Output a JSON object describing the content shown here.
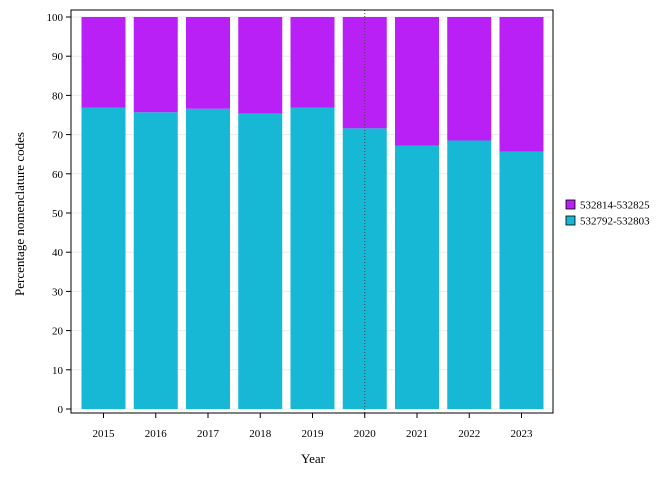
{
  "chart_data": {
    "type": "bar",
    "stacked": true,
    "categories": [
      "2015",
      "2016",
      "2017",
      "2018",
      "2019",
      "2020",
      "2021",
      "2022",
      "2023"
    ],
    "series": [
      {
        "name": "532792-532803",
        "color": "#17b8d6",
        "values": [
          76.9,
          75.7,
          76.6,
          75.4,
          76.9,
          71.6,
          67.2,
          68.5,
          65.7
        ]
      },
      {
        "name": "532814-532825",
        "color": "#b820f5",
        "values": [
          23.1,
          24.3,
          23.4,
          24.6,
          23.1,
          28.4,
          32.8,
          31.5,
          34.3
        ]
      }
    ],
    "title": "",
    "xlabel": "Year",
    "ylabel": "Percentage nomenclature codes",
    "ylim": [
      0,
      100
    ],
    "yticks": [
      0,
      10,
      20,
      30,
      40,
      50,
      60,
      70,
      80,
      90,
      100
    ],
    "grid": true,
    "legend_position": "right",
    "legend_order": [
      "532814-532825",
      "532792-532803"
    ],
    "vline_category": "2020"
  }
}
